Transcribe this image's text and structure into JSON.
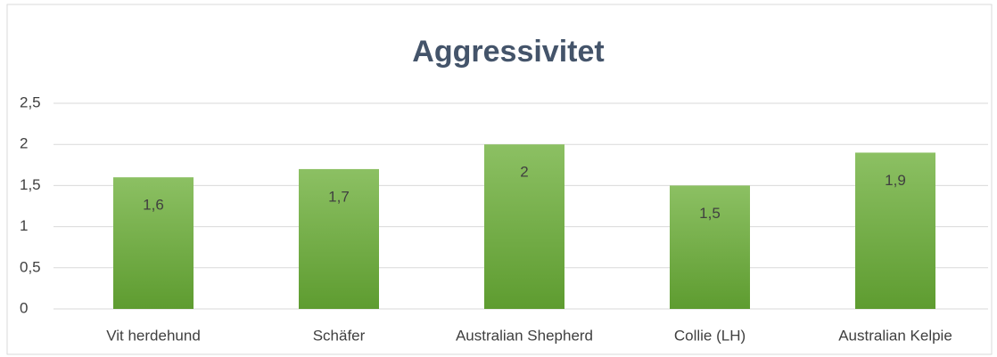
{
  "chart_data": {
    "type": "bar",
    "title": "Aggressivitet",
    "categories": [
      "Vit herdehund",
      "Schäfer",
      "Australian Shepherd",
      "Collie (LH)",
      "Australian Kelpie"
    ],
    "values": [
      1.6,
      1.7,
      2,
      1.5,
      1.9
    ],
    "value_labels": [
      "1,6",
      "1,7",
      "2",
      "1,5",
      "1,9"
    ],
    "color": "#70ad47",
    "ylim": [
      0,
      2.5
    ],
    "yticks": [
      0,
      {
        "value": 0.5,
        "label": "0,5"
      },
      1,
      {
        "value": 1.5,
        "label": "1,5"
      },
      2,
      {
        "value": 2.5,
        "label": "2,5"
      }
    ],
    "grid": true
  }
}
